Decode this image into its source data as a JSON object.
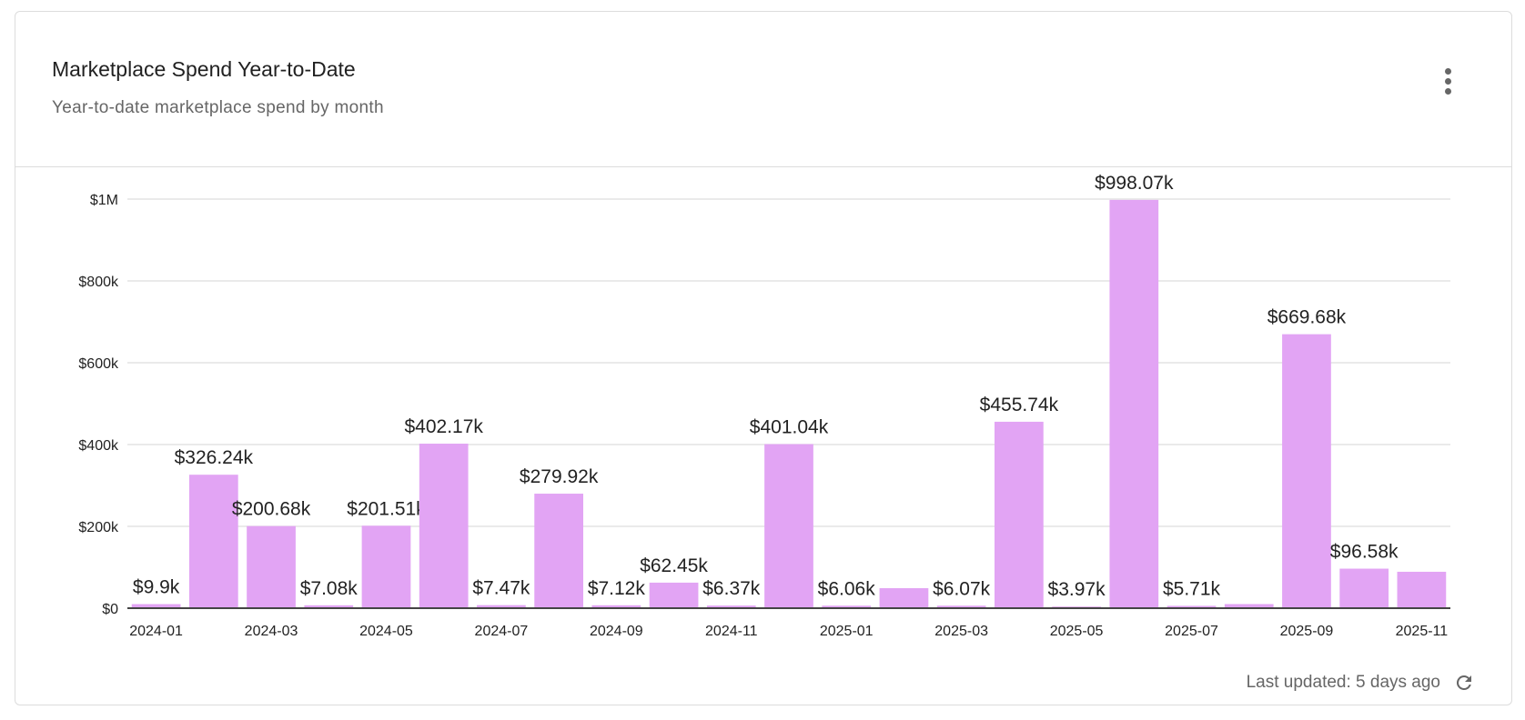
{
  "card": {
    "title": "Marketplace Spend Year-to-Date",
    "subtitle": "Year-to-date marketplace spend by month",
    "menu_icon": "more-vertical-icon",
    "footer": {
      "last_updated": "Last updated: 5 days ago",
      "refresh_icon": "refresh-icon"
    }
  },
  "chart_data": {
    "type": "bar",
    "title": "",
    "xlabel": "",
    "ylabel": "",
    "ylim": [
      0,
      1000000
    ],
    "yticks": [
      0,
      200000,
      400000,
      600000,
      800000,
      1000000
    ],
    "ytick_labels": [
      "$0",
      "$200k",
      "$400k",
      "$600k",
      "$800k",
      "$1M"
    ],
    "grid": true,
    "bar_color": "#e2a4f4",
    "categories": [
      "2024-01",
      "2024-02",
      "2024-03",
      "2024-04",
      "2024-05",
      "2024-06",
      "2024-07",
      "2024-08",
      "2024-09",
      "2024-10",
      "2024-11",
      "2024-12",
      "2025-01",
      "2025-02",
      "2025-03",
      "2025-04",
      "2025-05",
      "2025-06",
      "2025-07",
      "2025-08",
      "2025-09",
      "2025-10",
      "2025-11"
    ],
    "xtick_labels": [
      "2024-01",
      "2024-03",
      "2024-05",
      "2024-07",
      "2024-09",
      "2024-11",
      "2025-01",
      "2025-03",
      "2025-05",
      "2025-07",
      "2025-09",
      "2025-11"
    ],
    "values": [
      9900,
      326240,
      200680,
      7080,
      201510,
      402170,
      7470,
      279920,
      7120,
      62450,
      6370,
      401040,
      6060,
      49000,
      6070,
      455740,
      3970,
      998070,
      5710,
      10000,
      669680,
      96580,
      89000
    ],
    "data_labels": [
      "$9.9k",
      "$326.24k",
      "$200.68k",
      "$7.08k",
      "$201.51k",
      "$402.17k",
      "$7.47k",
      "$279.92k",
      "$7.12k",
      "$62.45k",
      "$6.37k",
      "$401.04k",
      "$6.06k",
      "",
      "$6.07k",
      "$455.74k",
      "$3.97k",
      "$998.07k",
      "$5.71k",
      "",
      "$669.68k",
      "$96.58k",
      ""
    ]
  }
}
